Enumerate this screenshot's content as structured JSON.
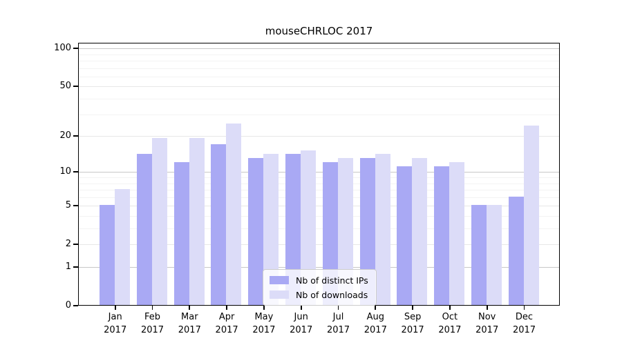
{
  "chart_data": {
    "type": "bar",
    "title": "mouseCHRLOC 2017",
    "categories": [
      "Jan",
      "Feb",
      "Mar",
      "Apr",
      "May",
      "Jun",
      "Jul",
      "Aug",
      "Sep",
      "Oct",
      "Nov",
      "Dec"
    ],
    "year_label": "2017",
    "series": [
      {
        "name": "Nb of distinct IPs",
        "color": "#a9a9f4",
        "values": [
          5,
          14,
          12,
          17,
          13,
          14,
          12,
          13,
          11,
          11,
          5,
          6
        ]
      },
      {
        "name": "Nb of downloads",
        "color": "#dcdcf8",
        "values": [
          7,
          19,
          19,
          25,
          14,
          15,
          13,
          14,
          13,
          12,
          5,
          24
        ]
      }
    ],
    "yscale": "log10(1+x)",
    "ylim": [
      0,
      110.5
    ],
    "yticks": [
      0,
      1,
      2,
      5,
      10,
      20,
      50,
      100
    ],
    "ytick_labels": [
      "0",
      "1",
      "2",
      "5",
      "10",
      "20",
      "50",
      "100"
    ],
    "minor_gridlines": [
      3,
      4,
      6,
      7,
      8,
      9,
      30,
      40,
      60,
      70,
      80,
      90
    ],
    "emphasized_gridlines": [
      1,
      10,
      100
    ],
    "grid": true,
    "legend_position": "bottom-center"
  }
}
